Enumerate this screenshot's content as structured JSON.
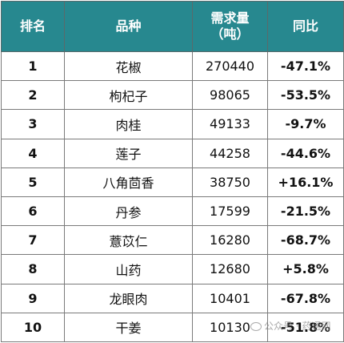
{
  "header": {
    "rank": "排名",
    "variety": "品种",
    "demand_line1": "需求量",
    "demand_line2": "（吨）",
    "yoy": "同比"
  },
  "rows": [
    {
      "rank": "1",
      "variety": "花椒",
      "demand": "270440",
      "yoy": "-47.1%",
      "trend": "down"
    },
    {
      "rank": "2",
      "variety": "枸杞子",
      "demand": "98065",
      "yoy": "-53.5%",
      "trend": "down"
    },
    {
      "rank": "3",
      "variety": "肉桂",
      "demand": "49133",
      "yoy": "-9.7%",
      "trend": "down"
    },
    {
      "rank": "4",
      "variety": "莲子",
      "demand": "44258",
      "yoy": "-44.6%",
      "trend": "down"
    },
    {
      "rank": "5",
      "variety": "八角茴香",
      "demand": "38750",
      "yoy": "+16.1%",
      "trend": "up"
    },
    {
      "rank": "6",
      "variety": "丹参",
      "demand": "17599",
      "yoy": "-21.5%",
      "trend": "down"
    },
    {
      "rank": "7",
      "variety": "薏苡仁",
      "demand": "16280",
      "yoy": "-68.7%",
      "trend": "down"
    },
    {
      "rank": "8",
      "variety": "山药",
      "demand": "12680",
      "yoy": "+5.8%",
      "trend": "up"
    },
    {
      "rank": "9",
      "variety": "龙眼肉",
      "demand": "10401",
      "yoy": "-67.8%",
      "trend": "down"
    },
    {
      "rank": "10",
      "variety": "干姜",
      "demand": "10130",
      "yoy": "-51.8%",
      "trend": "down"
    }
  ],
  "colors": {
    "header_bg": "#27888f",
    "negative": "#1aa25c",
    "positive": "#e3262f"
  },
  "watermark": {
    "icon": "wechat-icon",
    "text": "公众号 · 药通网"
  }
}
